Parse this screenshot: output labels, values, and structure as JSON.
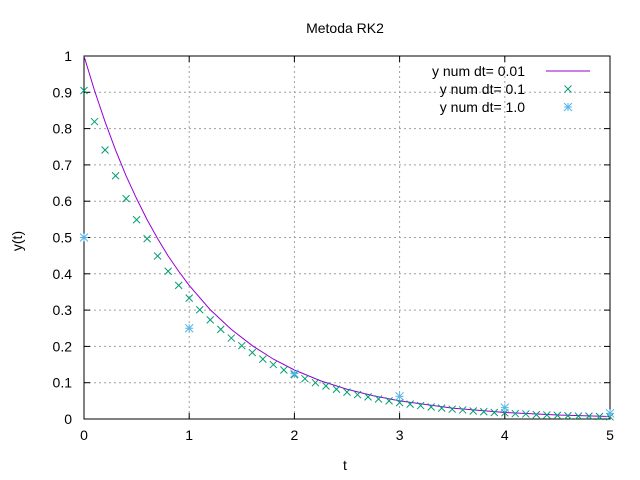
{
  "chart_data": {
    "type": "line",
    "title": "Metoda RK2",
    "xlabel": "t",
    "ylabel": "y(t)",
    "xlim": [
      0,
      5
    ],
    "ylim": [
      0,
      1
    ],
    "xticks": [
      "0",
      "1",
      "2",
      "3",
      "4",
      "5"
    ],
    "yticks": [
      "0",
      "0.1",
      "0.2",
      "0.3",
      "0.4",
      "0.5",
      "0.6",
      "0.7",
      "0.8",
      "0.9",
      "1"
    ],
    "grid": true,
    "legend_position": "top-right",
    "series": [
      {
        "name": "y num dt= 0.01",
        "style": "line",
        "color": "#9400d3",
        "x": [
          0,
          0.1,
          0.2,
          0.3,
          0.4,
          0.5,
          0.6,
          0.7,
          0.8,
          0.9,
          1.0,
          1.2,
          1.4,
          1.6,
          1.8,
          2.0,
          2.25,
          2.5,
          2.75,
          3.0,
          3.5,
          4.0,
          4.5,
          5.0
        ],
        "y": [
          1.0,
          0.905,
          0.819,
          0.741,
          0.67,
          0.607,
          0.549,
          0.497,
          0.449,
          0.407,
          0.368,
          0.301,
          0.247,
          0.202,
          0.165,
          0.135,
          0.105,
          0.082,
          0.064,
          0.05,
          0.03,
          0.018,
          0.011,
          0.007
        ]
      },
      {
        "name": "y num dt= 0.1",
        "style": "x",
        "color": "#009e73",
        "x": [
          0,
          0.1,
          0.2,
          0.3,
          0.4,
          0.5,
          0.6,
          0.7,
          0.8,
          0.9,
          1.0,
          1.1,
          1.2,
          1.3,
          1.4,
          1.5,
          1.6,
          1.7,
          1.8,
          1.9,
          2.0,
          2.1,
          2.2,
          2.3,
          2.4,
          2.5,
          2.6,
          2.7,
          2.8,
          2.9,
          3.0,
          3.1,
          3.2,
          3.3,
          3.4,
          3.5,
          3.6,
          3.7,
          3.8,
          3.9,
          4.0,
          4.1,
          4.2,
          4.3,
          4.4,
          4.5,
          4.6,
          4.7,
          4.8,
          4.9,
          5.0
        ],
        "y": [
          0.905,
          0.819,
          0.741,
          0.67,
          0.607,
          0.549,
          0.497,
          0.449,
          0.407,
          0.368,
          0.333,
          0.301,
          0.273,
          0.247,
          0.223,
          0.202,
          0.183,
          0.165,
          0.15,
          0.135,
          0.122,
          0.111,
          0.1,
          0.091,
          0.082,
          0.074,
          0.067,
          0.061,
          0.055,
          0.05,
          0.045,
          0.041,
          0.037,
          0.033,
          0.03,
          0.027,
          0.025,
          0.022,
          0.02,
          0.018,
          0.017,
          0.015,
          0.014,
          0.012,
          0.011,
          0.01,
          0.009,
          0.008,
          0.008,
          0.007,
          0.006
        ]
      },
      {
        "name": "y num dt= 1.0",
        "style": "star",
        "color": "#56b4e9",
        "x": [
          0,
          1,
          2,
          3,
          4,
          5
        ],
        "y": [
          0.5,
          0.25,
          0.125,
          0.0625,
          0.03125,
          0.015625
        ]
      }
    ]
  }
}
